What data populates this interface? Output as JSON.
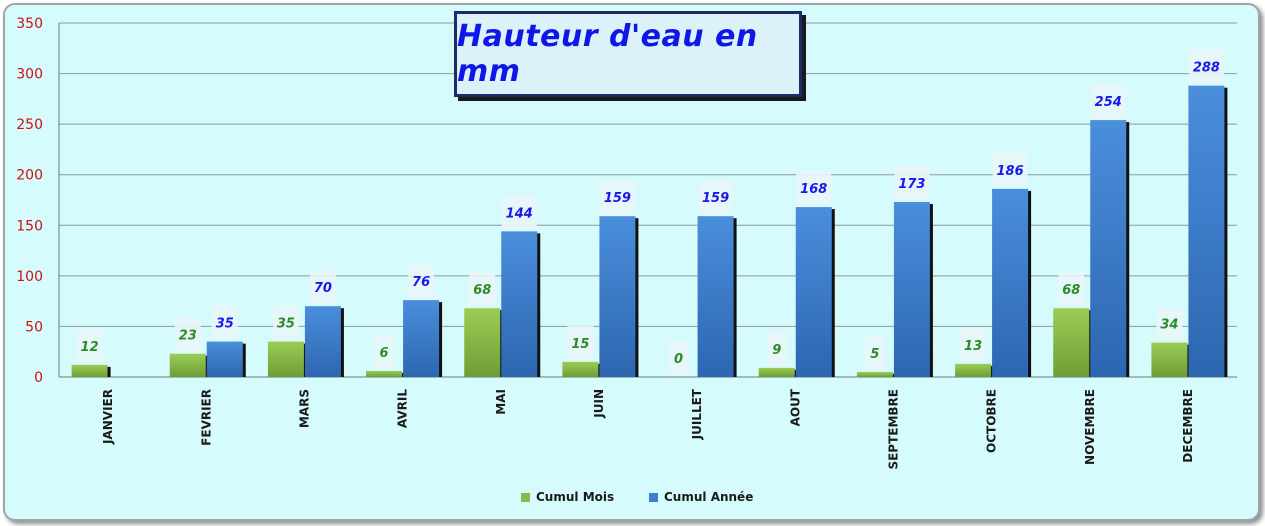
{
  "chart_data": {
    "type": "bar",
    "title": "Hauteur d'eau en mm",
    "categories": [
      "JANVIER",
      "FEVRIER",
      "MARS",
      "AVRIL",
      "MAI",
      "JUIN",
      "JUILLET",
      "AOUT",
      "SEPTEMBRE",
      "OCTOBRE",
      "NOVEMBRE",
      "DECEMBRE"
    ],
    "series": [
      {
        "name": "Cumul Mois",
        "values": [
          12,
          23,
          35,
          6,
          68,
          15,
          0,
          9,
          5,
          13,
          68,
          34
        ],
        "color": "#8ab94a",
        "label_color": "#2e8b25"
      },
      {
        "name": "Cumul Année",
        "values": [
          null,
          35,
          70,
          76,
          144,
          159,
          159,
          168,
          173,
          186,
          254,
          288
        ],
        "color": "#3c7fd0",
        "label_color": "#1a1ae8"
      }
    ],
    "ylim": [
      0,
      350
    ],
    "yticks": [
      0,
      50,
      100,
      150,
      200,
      250,
      300,
      350
    ],
    "ytick_color": "#cc1111",
    "grid": true,
    "legend_position": "bottom",
    "xlabel": "",
    "ylabel": ""
  },
  "legend": {
    "month_label": "Cumul Mois",
    "year_label": "Cumul Année"
  }
}
